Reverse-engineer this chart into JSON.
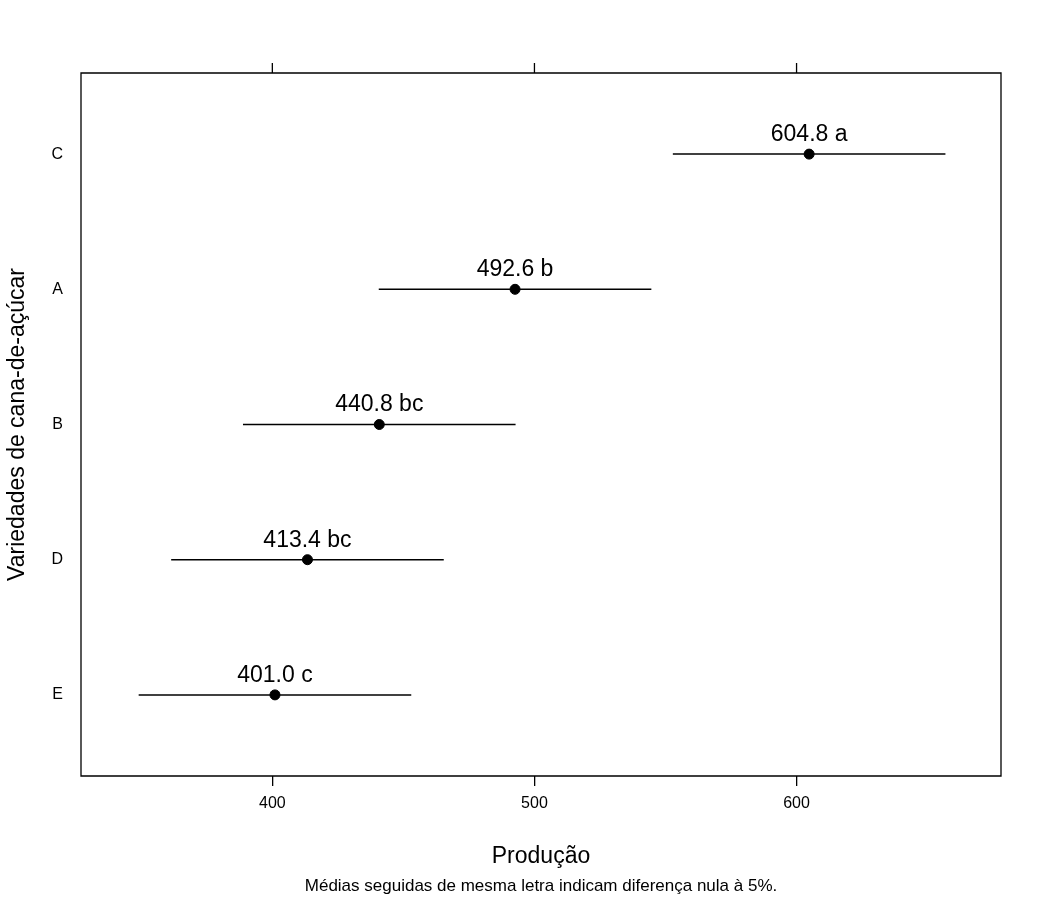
{
  "chart_data": {
    "type": "scatter",
    "orientation": "horizontal",
    "xlabel": "Produção",
    "ylabel": "Variedades de cana-de-açúcar",
    "annotations": [
      "Médias seguidas de mesma letra indicam diferença nula à 5%."
    ],
    "categories": [
      "C",
      "A",
      "B",
      "D",
      "E"
    ],
    "series": [
      {
        "color": "#000000",
        "values": [
          604.8,
          492.6,
          440.8,
          413.4,
          401.0
        ],
        "errors": [
          52,
          52,
          52,
          52,
          52
        ],
        "value_labels": [
          "604.8 a",
          "492.6 b",
          "440.8 bc",
          "413.4 bc",
          "401.0 c"
        ]
      }
    ],
    "marker": "circle",
    "xlim": [
      327,
      678
    ],
    "xticks": [
      400,
      500,
      600
    ]
  }
}
